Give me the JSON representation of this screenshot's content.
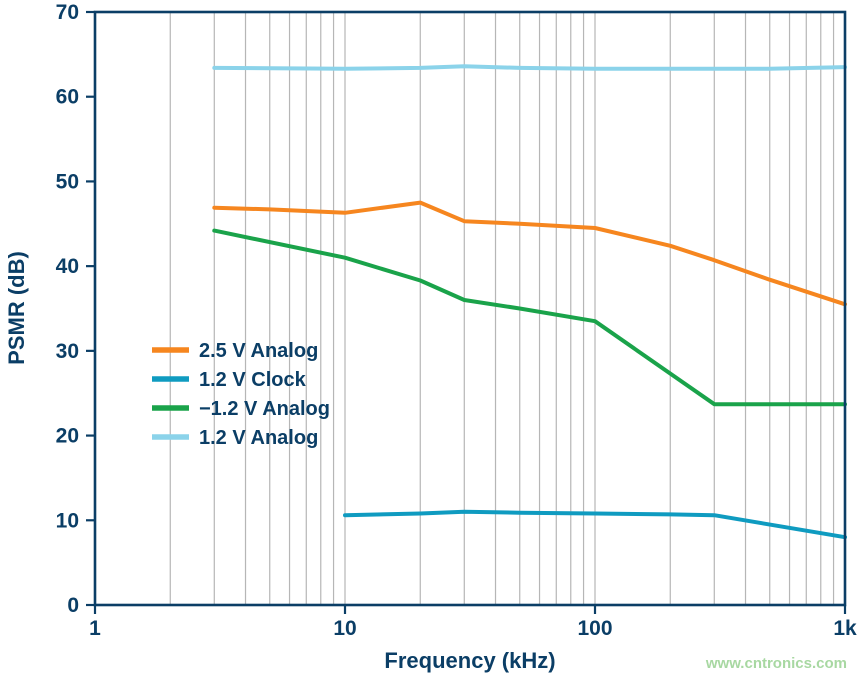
{
  "chart_data": {
    "type": "line",
    "title": "",
    "xlabel": "Frequency (kHz)",
    "ylabel": "PSMR (dB)",
    "x_scale": "log",
    "xlim": [
      1,
      1000
    ],
    "ylim": [
      0,
      70
    ],
    "grid": "vertical-log-minor",
    "x_ticks": [
      {
        "value": 1,
        "label": "1"
      },
      {
        "value": 10,
        "label": "10"
      },
      {
        "value": 100,
        "label": "100"
      },
      {
        "value": 1000,
        "label": "1k"
      }
    ],
    "y_ticks": [
      {
        "value": 0,
        "label": "0"
      },
      {
        "value": 10,
        "label": "10"
      },
      {
        "value": 20,
        "label": "20"
      },
      {
        "value": 30,
        "label": "30"
      },
      {
        "value": 40,
        "label": "40"
      },
      {
        "value": 50,
        "label": "50"
      },
      {
        "value": 60,
        "label": "60"
      },
      {
        "value": 70,
        "label": "70"
      }
    ],
    "legend_position": "left-middle-inside",
    "series": [
      {
        "name": "2.5 V Analog",
        "color": "#f6861f",
        "points": [
          [
            3,
            46.9
          ],
          [
            5,
            46.7
          ],
          [
            10,
            46.3
          ],
          [
            20,
            47.5
          ],
          [
            30,
            45.3
          ],
          [
            50,
            45.0
          ],
          [
            100,
            44.5
          ],
          [
            200,
            42.4
          ],
          [
            300,
            40.7
          ],
          [
            500,
            38.4
          ],
          [
            1000,
            35.5
          ]
        ]
      },
      {
        "name": "1.2 V Clock",
        "color": "#0f9bc0",
        "points": [
          [
            10,
            10.6
          ],
          [
            20,
            10.8
          ],
          [
            30,
            11.0
          ],
          [
            50,
            10.9
          ],
          [
            100,
            10.8
          ],
          [
            200,
            10.7
          ],
          [
            300,
            10.6
          ],
          [
            1000,
            8.0
          ]
        ]
      },
      {
        "name": "−1.2 V Analog",
        "color": "#1aa34a",
        "points": [
          [
            3,
            44.2
          ],
          [
            10,
            41.0
          ],
          [
            20,
            38.3
          ],
          [
            30,
            36.0
          ],
          [
            50,
            35.0
          ],
          [
            100,
            33.5
          ],
          [
            300,
            23.7
          ],
          [
            1000,
            23.7
          ]
        ]
      },
      {
        "name": "1.2 V Analog",
        "color": "#8bd3ea",
        "points": [
          [
            3,
            63.4
          ],
          [
            10,
            63.3
          ],
          [
            20,
            63.4
          ],
          [
            30,
            63.6
          ],
          [
            50,
            63.4
          ],
          [
            100,
            63.3
          ],
          [
            300,
            63.3
          ],
          [
            500,
            63.3
          ],
          [
            1000,
            63.5
          ]
        ]
      }
    ]
  },
  "colors": {
    "axis": "#0b3e66",
    "gridline": "#b6b6b6",
    "background": "#ffffff"
  },
  "watermark": {
    "text": "www.cntronics.com",
    "color": "#a8d8a2"
  }
}
